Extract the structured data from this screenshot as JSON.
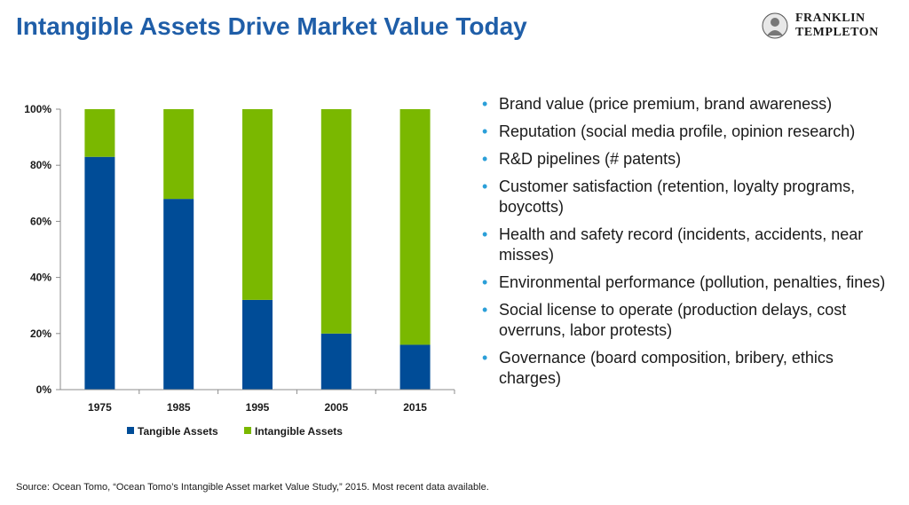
{
  "header": {
    "title": "Intangible Assets Drive Market Value Today",
    "logo_line1": "FRANKLIN",
    "logo_line2": "TEMPLETON"
  },
  "chart_data": {
    "type": "bar",
    "stacked": true,
    "categories": [
      "1975",
      "1985",
      "1995",
      "2005",
      "2015"
    ],
    "series": [
      {
        "name": "Tangible Assets",
        "values": [
          83,
          68,
          32,
          20,
          16
        ],
        "color": "#004c97"
      },
      {
        "name": "Intangible Assets",
        "values": [
          17,
          32,
          68,
          80,
          84
        ],
        "color": "#7ab800"
      }
    ],
    "y_ticks": [
      "0%",
      "20%",
      "40%",
      "60%",
      "80%",
      "100%"
    ],
    "ylim": [
      0,
      100
    ],
    "legend_position": "bottom",
    "grid": false
  },
  "bullets": [
    "Brand value (price premium, brand awareness)",
    "Reputation (social media profile, opinion research)",
    "R&D pipelines (# patents)",
    "Customer satisfaction (retention, loyalty programs, boycotts)",
    "Health and safety record (incidents, accidents, near misses)",
    "Environmental performance (pollution, penalties, fines)",
    "Social license to operate (production delays, cost overruns, labor protests)",
    "Governance (board composition, bribery, ethics charges)"
  ],
  "footer": {
    "source": "Source: Ocean Tomo, “Ocean Tomo’s Intangible Asset market Value Study,” 2015. Most recent data available."
  },
  "colors": {
    "title": "#1f5ea8",
    "bullet": "#2b9fd8",
    "tangible": "#004c97",
    "intangible": "#7ab800"
  }
}
